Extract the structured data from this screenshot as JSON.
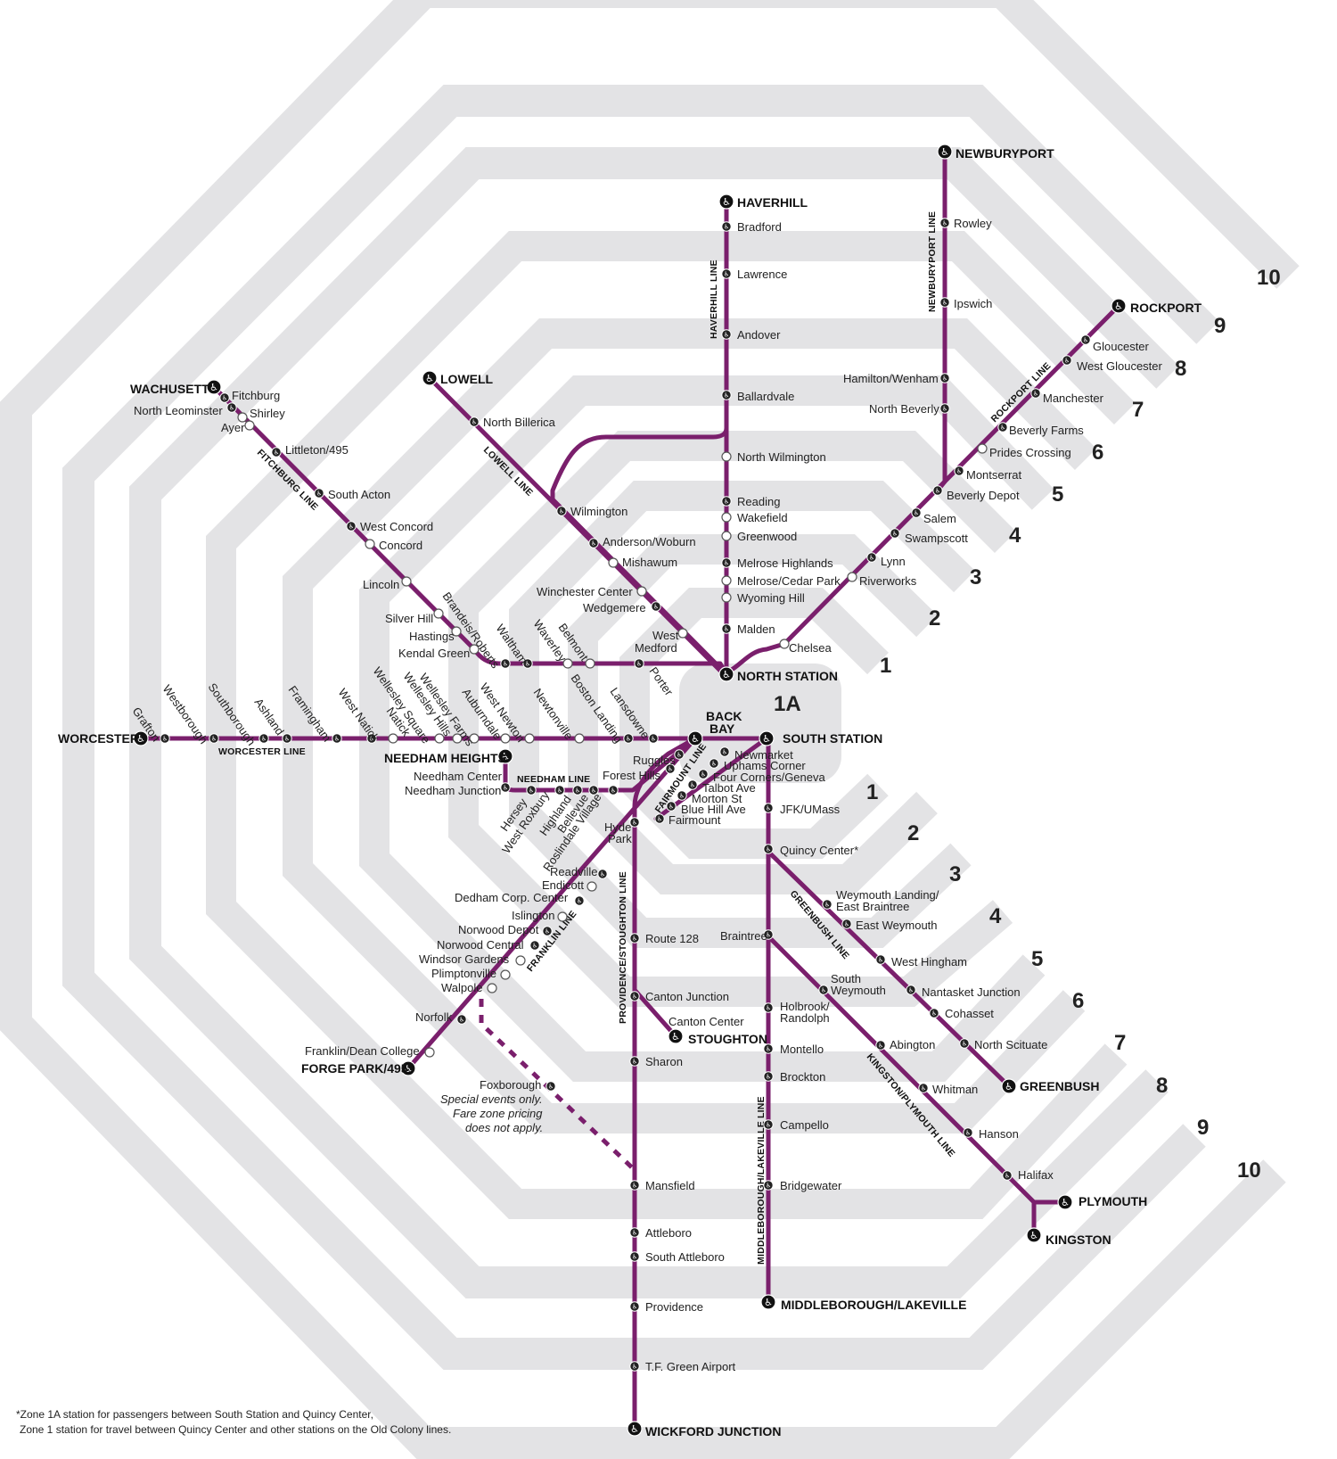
{
  "map": {
    "zones": [
      "10",
      "9",
      "8",
      "7",
      "6",
      "5",
      "4",
      "3",
      "2",
      "1",
      "1A"
    ],
    "colors": {
      "line": "#7a1f6c",
      "zone_band": "#e3e3e5",
      "station": "#222222"
    },
    "line_names": {
      "haverhill": "HAVERHILL LINE",
      "newburyport": "NEWBURYPORT LINE",
      "rockport": "ROCKPORT LINE",
      "lowell": "LOWELL LINE",
      "fitchburg": "FITCHBURG LINE",
      "worcester": "WORCESTER LINE",
      "needham": "NEEDHAM LINE",
      "fairmount": "FAIRMOUNT LINE",
      "franklin": "FRANKLIN LINE",
      "providence": "PROVIDENCE/STOUGHTON LINE",
      "middleborough": "MIDDLEBOROUGH/LAKEVILLE LINE",
      "greenbush": "GREENBUSH LINE",
      "kingston": "KINGSTON/PLYMOUTH LINE"
    },
    "terminals": {
      "newburyport": "NEWBURYPORT",
      "haverhill": "HAVERHILL",
      "rockport": "ROCKPORT",
      "wachusett": "WACHUSETT",
      "lowell": "LOWELL",
      "north_station": "NORTH STATION",
      "back_bay_1": "BACK",
      "back_bay_2": "BAY",
      "south_station": "SOUTH STATION",
      "worcester": "WORCESTER",
      "needham_heights": "NEEDHAM HEIGHTS",
      "stoughton": "STOUGHTON",
      "forge_park": "FORGE PARK/495",
      "greenbush": "GREENBUSH",
      "plymouth": "PLYMOUTH",
      "kingston": "KINGSTON",
      "middleborough": "MIDDLEBOROUGH/LAKEVILLE",
      "wickford": "WICKFORD JUNCTION"
    },
    "stations": {
      "rowley": "Rowley",
      "ipswich": "Ipswich",
      "hamilton": "Hamilton/Wenham",
      "north_beverly": "North Beverly",
      "gloucester": "Gloucester",
      "west_gloucester": "West Gloucester",
      "manchester": "Manchester",
      "beverly_farms": "Beverly Farms",
      "prides": "Prides Crossing",
      "montserrat": "Montserrat",
      "beverly_depot": "Beverly Depot",
      "salem": "Salem",
      "swampscott": "Swampscott",
      "lynn": "Lynn",
      "riverworks": "Riverworks",
      "chelsea": "Chelsea",
      "bradford": "Bradford",
      "lawrence": "Lawrence",
      "andover": "Andover",
      "ballardvale": "Ballardvale",
      "north_wilmington": "North Wilmington",
      "reading": "Reading",
      "wakefield": "Wakefield",
      "greenwood": "Greenwood",
      "melrose_highlands": "Melrose Highlands",
      "melrose_cedar": "Melrose/Cedar Park",
      "wyoming": "Wyoming Hill",
      "malden": "Malden",
      "north_billerica": "North Billerica",
      "wilmington": "Wilmington",
      "anderson": "Anderson/Woburn",
      "mishawum": "Mishawum",
      "winchester": "Winchester Center",
      "wedgemere": "Wedgemere",
      "west_medford_1": "West",
      "west_medford_2": "Medford",
      "fitchburg": "Fitchburg",
      "north_leominster": "North Leominster",
      "shirley": "Shirley",
      "ayer": "Ayer",
      "littleton": "Littleton/495",
      "south_acton": "South Acton",
      "west_concord": "West Concord",
      "concord": "Concord",
      "lincoln": "Lincoln",
      "silver_hill": "Silver Hill",
      "hastings": "Hastings",
      "kendal_green": "Kendal Green",
      "brandeis": "Brandeis/Roberts",
      "waltham": "Waltham",
      "waverley": "Waverley",
      "belmont": "Belmont",
      "porter": "Porter",
      "grafton": "Grafton",
      "westborough": "Westborough",
      "southborough": "Southborough",
      "ashland": "Ashland",
      "framingham": "Framingham",
      "west_natick": "West Natick",
      "natick": "Natick",
      "wellesley_square": "Wellesley Square",
      "wellesley_hills": "Wellesley Hills",
      "wellesley_farms": "Wellesley Farms",
      "auburndale": "Auburndale",
      "west_newton": "West Newton",
      "newtonville": "Newtonville",
      "boston_landing": "Boston Landing",
      "lansdowne": "Lansdowne",
      "newmarket": "Newmarket",
      "uphams": "Uphams Corner",
      "four_corners": "Four Corners/Geneva",
      "talbot": "Talbot Ave",
      "morton": "Morton St",
      "blue_hill": "Blue Hill Ave",
      "fairmount": "Fairmount",
      "ruggles": "Ruggles",
      "forest_hills": "Forest Hills",
      "needham_center": "Needham Center",
      "needham_junction": "Needham Junction",
      "hersey": "Hersey",
      "west_roxbury": "West Roxbury",
      "highland": "Highland",
      "bellevue": "Bellevue",
      "roslindale": "Roslindale Village",
      "hyde_park_1": "Hyde",
      "hyde_park_2": "Park",
      "jfk": "JFK/UMass",
      "quincy": "Quincy Center*",
      "readville": "Readville",
      "endicott": "Endicott",
      "dedham": "Dedham Corp. Center",
      "islington": "Islington",
      "norwood_depot": "Norwood Depot",
      "norwood_central": "Norwood Central",
      "windsor": "Windsor Gardens",
      "plimptonville": "Plimptonville",
      "walpole": "Walpole",
      "norfolk": "Norfolk",
      "franklin_dean": "Franklin/Dean College",
      "foxborough": "Foxborough",
      "fox_note_1": "Special events only.",
      "fox_note_2": "Fare zone pricing",
      "fox_note_3": "does not apply.",
      "route128": "Route 128",
      "canton_junction": "Canton Junction",
      "canton_center": "Canton Center",
      "sharon": "Sharon",
      "mansfield": "Mansfield",
      "attleboro": "Attleboro",
      "south_attleboro": "South Attleboro",
      "providence": "Providence",
      "tf_green": "T.F. Green Airport",
      "weymouth_landing_1": "Weymouth Landing/",
      "weymouth_landing_2": "East Braintree",
      "east_weymouth": "East Weymouth",
      "west_hingham": "West Hingham",
      "nantasket": "Nantasket Junction",
      "cohasset": "Cohasset",
      "north_scituate": "North Scituate",
      "braintree": "Braintree",
      "south_weymouth_1": "South",
      "south_weymouth_2": "Weymouth",
      "abington": "Abington",
      "whitman": "Whitman",
      "hanson": "Hanson",
      "halifax": "Halifax",
      "holbrook_1": "Holbrook/",
      "holbrook_2": "Randolph",
      "montello": "Montello",
      "brockton": "Brockton",
      "campello": "Campello",
      "bridgewater": "Bridgewater"
    },
    "footnote_1": "*Zone 1A station for passengers between South Station and Quincy Center,",
    "footnote_2": "Zone 1 station for travel between Quincy Center and other stations on the Old Colony lines."
  }
}
